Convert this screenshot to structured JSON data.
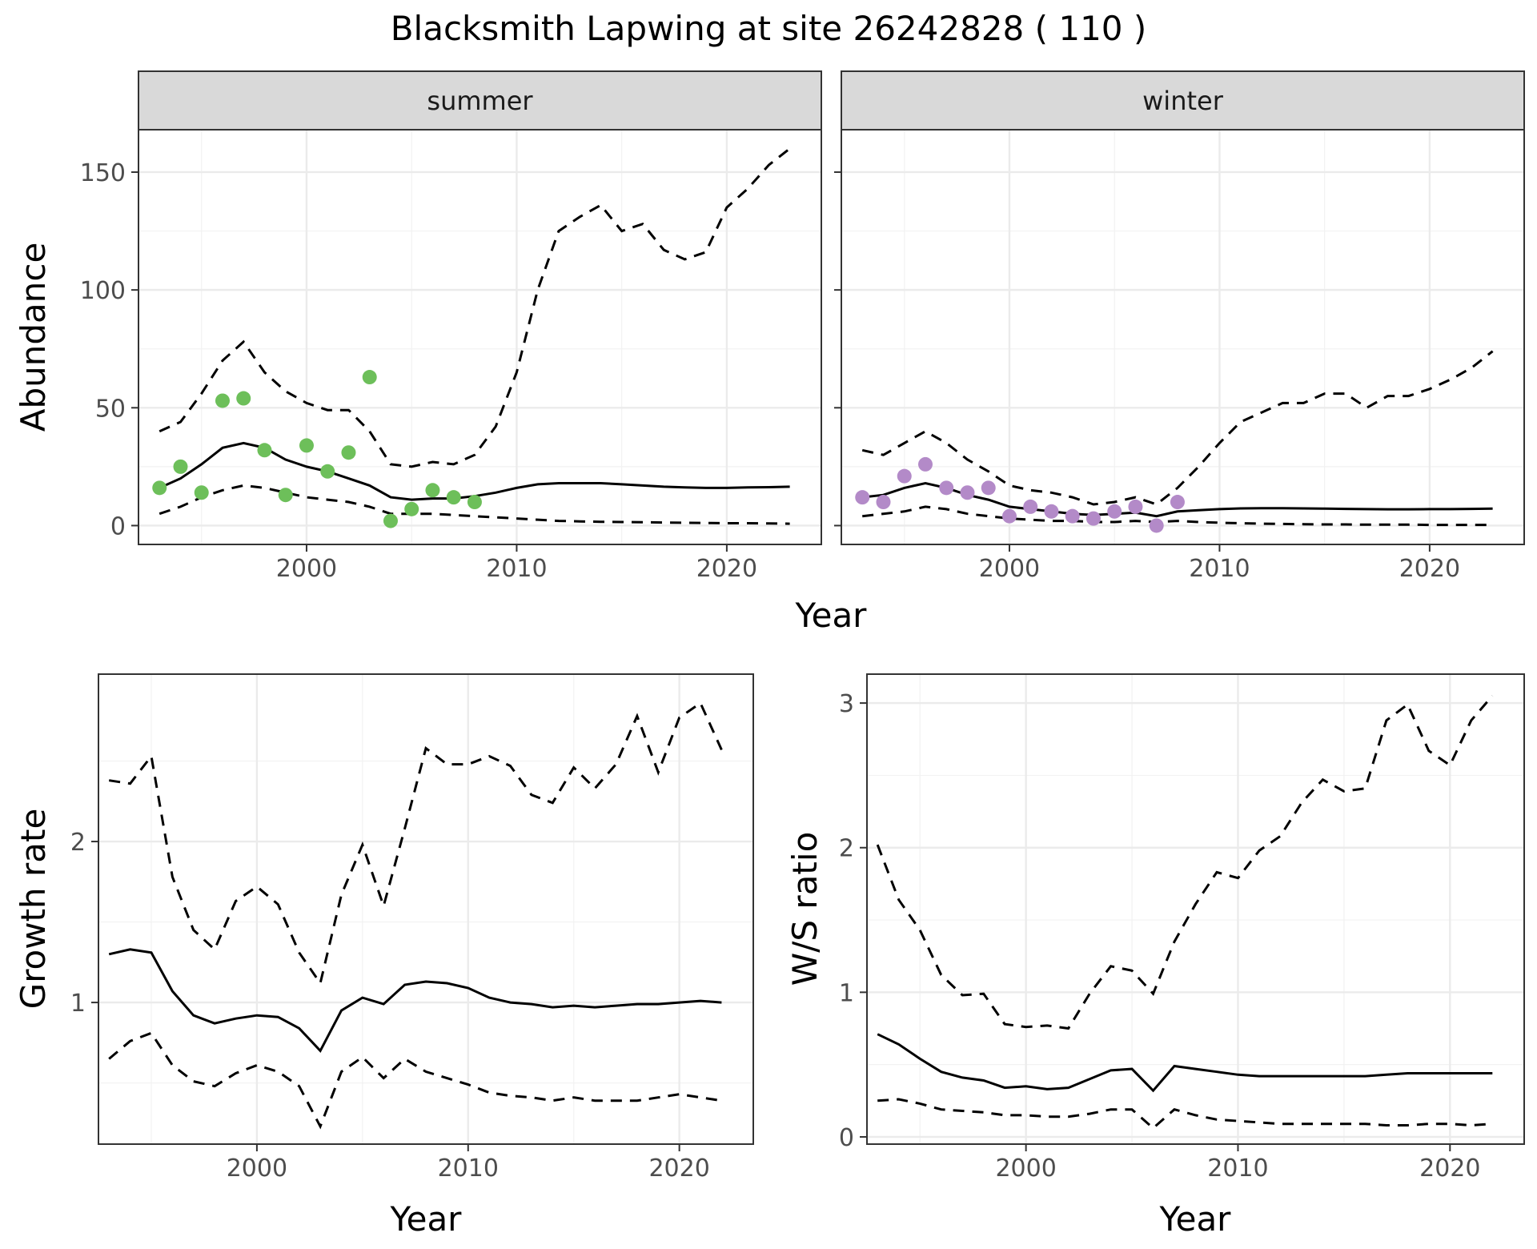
{
  "title": "Blacksmith Lapwing at site 26242828 ( 110 )",
  "colors": {
    "summer_points": "#6dbf5a",
    "winter_points": "#b38ac8",
    "lines": "#000000"
  },
  "axes": {
    "abundance_ylabel": "Abundance",
    "growth_ylabel": "Growth rate",
    "ratio_ylabel": "W/S ratio",
    "xlabel": "Year"
  },
  "chart_data": [
    {
      "type": "line",
      "panel": "summer",
      "xlabel": "Year",
      "ylabel": "Abundance",
      "xlim": [
        1992,
        2024.5
      ],
      "ylim": [
        -8,
        168
      ],
      "x_ticks": [
        2000,
        2010,
        2020
      ],
      "y_ticks": [
        0,
        50,
        100,
        150
      ],
      "grid": true,
      "points": {
        "x": [
          1993,
          1994,
          1995,
          1996,
          1997,
          1998,
          1999,
          2000,
          2001,
          2002,
          2003,
          2004,
          2005,
          2006,
          2007,
          2008
        ],
        "y": [
          16,
          25,
          14,
          53,
          54,
          32,
          13,
          34,
          23,
          31,
          63,
          2,
          7,
          15,
          12,
          10
        ]
      },
      "series": [
        {
          "role": "estimate",
          "x": [
            1993,
            1994,
            1995,
            1996,
            1997,
            1998,
            1999,
            2000,
            2001,
            2002,
            2003,
            2004,
            2005,
            2006,
            2007,
            2008,
            2009,
            2010,
            2011,
            2012,
            2013,
            2014,
            2015,
            2016,
            2017,
            2018,
            2019,
            2020,
            2021,
            2022,
            2023
          ],
          "y": [
            16,
            20,
            26,
            33,
            35,
            33,
            28,
            25,
            23,
            20,
            17,
            12,
            11,
            11.5,
            11.5,
            12.5,
            14,
            16,
            17.5,
            18,
            18,
            18,
            17.5,
            17,
            16.5,
            16.2,
            16,
            16,
            16.2,
            16.3,
            16.5
          ]
        },
        {
          "role": "upper_ci",
          "x": [
            1993,
            1994,
            1995,
            1996,
            1997,
            1998,
            1999,
            2000,
            2001,
            2002,
            2003,
            2004,
            2005,
            2006,
            2007,
            2008,
            2009,
            2010,
            2011,
            2012,
            2013,
            2014,
            2015,
            2016,
            2017,
            2018,
            2019,
            2020,
            2021,
            2022,
            2023
          ],
          "y": [
            40,
            44,
            56,
            70,
            78,
            65,
            57,
            52,
            49,
            49,
            40,
            26,
            25,
            27,
            26,
            30,
            42,
            65,
            100,
            125,
            131,
            136,
            125,
            128,
            117,
            113,
            116,
            135,
            143,
            153,
            160
          ]
        },
        {
          "role": "lower_ci",
          "x": [
            1993,
            1994,
            1995,
            1996,
            1997,
            1998,
            1999,
            2000,
            2001,
            2002,
            2003,
            2004,
            2005,
            2006,
            2007,
            2008,
            2009,
            2010,
            2011,
            2012,
            2013,
            2014,
            2015,
            2016,
            2017,
            2018,
            2019,
            2020,
            2021,
            2022,
            2023
          ],
          "y": [
            5,
            8,
            12,
            15,
            17,
            16,
            14,
            12,
            11,
            10,
            8,
            5,
            5,
            5,
            4.5,
            4,
            3.5,
            3,
            2.5,
            2,
            1.8,
            1.6,
            1.5,
            1.4,
            1.3,
            1.2,
            1.1,
            1,
            1,
            0.9,
            0.8
          ]
        }
      ]
    },
    {
      "type": "line",
      "panel": "winter",
      "xlabel": "Year",
      "ylabel": "Abundance",
      "xlim": [
        1992,
        2024.5
      ],
      "ylim": [
        -8,
        168
      ],
      "x_ticks": [
        2000,
        2010,
        2020
      ],
      "y_ticks": [
        0,
        50,
        100,
        150
      ],
      "grid": true,
      "points": {
        "x": [
          1993,
          1994,
          1995,
          1996,
          1997,
          1998,
          1999,
          2000,
          2001,
          2002,
          2003,
          2004,
          2005,
          2006,
          2007,
          2008
        ],
        "y": [
          12,
          10,
          21,
          26,
          16,
          14,
          16,
          4,
          8,
          6,
          4,
          3,
          6,
          8,
          0,
          10
        ]
      },
      "series": [
        {
          "role": "estimate",
          "x": [
            1993,
            1994,
            1995,
            1996,
            1997,
            1998,
            1999,
            2000,
            2001,
            2002,
            2003,
            2004,
            2005,
            2006,
            2007,
            2008,
            2009,
            2010,
            2011,
            2012,
            2013,
            2014,
            2015,
            2016,
            2017,
            2018,
            2019,
            2020,
            2021,
            2022,
            2023
          ],
          "y": [
            12,
            13,
            16,
            18,
            16,
            13,
            11,
            8,
            7,
            6,
            5,
            4.5,
            5,
            5.5,
            4,
            6,
            6.5,
            7,
            7.3,
            7.4,
            7.4,
            7.3,
            7.2,
            7.1,
            7.0,
            6.9,
            6.9,
            7.0,
            7.0,
            7.1,
            7.2
          ]
        },
        {
          "role": "upper_ci",
          "x": [
            1993,
            1994,
            1995,
            1996,
            1997,
            1998,
            1999,
            2000,
            2001,
            2002,
            2003,
            2004,
            2005,
            2006,
            2007,
            2008,
            2009,
            2010,
            2011,
            2012,
            2013,
            2014,
            2015,
            2016,
            2017,
            2018,
            2019,
            2020,
            2021,
            2022,
            2023
          ],
          "y": [
            32,
            30,
            35,
            40,
            35,
            28,
            23,
            17,
            15,
            14,
            12,
            9,
            10,
            12,
            9,
            16,
            25,
            35,
            44,
            48,
            52,
            52,
            56,
            56,
            50,
            55,
            55,
            58,
            62,
            67,
            74
          ]
        },
        {
          "role": "lower_ci",
          "x": [
            1993,
            1994,
            1995,
            1996,
            1997,
            1998,
            1999,
            2000,
            2001,
            2002,
            2003,
            2004,
            2005,
            2006,
            2007,
            2008,
            2009,
            2010,
            2011,
            2012,
            2013,
            2014,
            2015,
            2016,
            2017,
            2018,
            2019,
            2020,
            2021,
            2022,
            2023
          ],
          "y": [
            4,
            5,
            6,
            8,
            7,
            5,
            4,
            3,
            2.5,
            2,
            2,
            1.5,
            1.5,
            2,
            1.5,
            2,
            1.5,
            1.2,
            1,
            0.8,
            0.7,
            0.6,
            0.5,
            0.5,
            0.4,
            0.4,
            0.4,
            0.3,
            0.3,
            0.3,
            0.3
          ]
        }
      ]
    },
    {
      "type": "line",
      "panel": "growth",
      "xlabel": "Year",
      "ylabel": "Growth rate",
      "xlim": [
        1992.5,
        2023.5
      ],
      "ylim": [
        0.12,
        3.04
      ],
      "x_ticks": [
        2000,
        2010,
        2020
      ],
      "y_ticks": [
        1,
        2
      ],
      "grid": true,
      "series": [
        {
          "role": "estimate",
          "x": [
            1993,
            1994,
            1995,
            1996,
            1997,
            1998,
            1999,
            2000,
            2001,
            2002,
            2003,
            2004,
            2005,
            2006,
            2007,
            2008,
            2009,
            2010,
            2011,
            2012,
            2013,
            2014,
            2015,
            2016,
            2017,
            2018,
            2019,
            2020,
            2021,
            2022
          ],
          "y": [
            1.3,
            1.33,
            1.31,
            1.07,
            0.92,
            0.87,
            0.9,
            0.92,
            0.91,
            0.84,
            0.7,
            0.95,
            1.03,
            0.99,
            1.11,
            1.13,
            1.12,
            1.09,
            1.03,
            1.0,
            0.99,
            0.97,
            0.98,
            0.97,
            0.98,
            0.99,
            0.99,
            1.0,
            1.01,
            1.0
          ]
        },
        {
          "role": "upper_ci",
          "x": [
            1993,
            1994,
            1995,
            1996,
            1997,
            1998,
            1999,
            2000,
            2001,
            2002,
            2003,
            2004,
            2005,
            2006,
            2007,
            2008,
            2009,
            2010,
            2011,
            2012,
            2013,
            2014,
            2015,
            2016,
            2017,
            2018,
            2019,
            2020,
            2021,
            2022
          ],
          "y": [
            2.38,
            2.36,
            2.53,
            1.78,
            1.45,
            1.33,
            1.63,
            1.72,
            1.61,
            1.31,
            1.12,
            1.67,
            1.98,
            1.6,
            2.08,
            2.58,
            2.48,
            2.48,
            2.53,
            2.47,
            2.29,
            2.24,
            2.46,
            2.33,
            2.48,
            2.78,
            2.43,
            2.77,
            2.86,
            2.57
          ]
        },
        {
          "role": "lower_ci",
          "x": [
            1993,
            1994,
            1995,
            1996,
            1997,
            1998,
            1999,
            2000,
            2001,
            2002,
            2003,
            2004,
            2005,
            2006,
            2007,
            2008,
            2009,
            2010,
            2011,
            2012,
            2013,
            2014,
            2015,
            2016,
            2017,
            2018,
            2019,
            2020,
            2021,
            2022
          ],
          "y": [
            0.65,
            0.76,
            0.81,
            0.61,
            0.51,
            0.48,
            0.56,
            0.61,
            0.57,
            0.48,
            0.23,
            0.57,
            0.66,
            0.53,
            0.65,
            0.57,
            0.53,
            0.49,
            0.44,
            0.42,
            0.41,
            0.39,
            0.41,
            0.39,
            0.39,
            0.39,
            0.41,
            0.43,
            0.41,
            0.39
          ]
        }
      ]
    },
    {
      "type": "line",
      "panel": "ratio",
      "xlabel": "Year",
      "ylabel": "W/S ratio",
      "xlim": [
        1992.5,
        2023.5
      ],
      "ylim": [
        -0.05,
        3.2
      ],
      "x_ticks": [
        2000,
        2010,
        2020
      ],
      "y_ticks": [
        0,
        1,
        2,
        3
      ],
      "grid": true,
      "series": [
        {
          "role": "estimate",
          "x": [
            1993,
            1994,
            1995,
            1996,
            1997,
            1998,
            1999,
            2000,
            2001,
            2002,
            2003,
            2004,
            2005,
            2006,
            2007,
            2008,
            2009,
            2010,
            2011,
            2012,
            2013,
            2014,
            2015,
            2016,
            2017,
            2018,
            2019,
            2020,
            2021,
            2022
          ],
          "y": [
            0.71,
            0.64,
            0.54,
            0.45,
            0.41,
            0.39,
            0.34,
            0.35,
            0.33,
            0.34,
            0.4,
            0.46,
            0.47,
            0.32,
            0.49,
            0.47,
            0.45,
            0.43,
            0.42,
            0.42,
            0.42,
            0.42,
            0.42,
            0.42,
            0.43,
            0.44,
            0.44,
            0.44,
            0.44,
            0.44
          ]
        },
        {
          "role": "upper_ci",
          "x": [
            1993,
            1994,
            1995,
            1996,
            1997,
            1998,
            1999,
            2000,
            2001,
            2002,
            2003,
            2004,
            2005,
            2006,
            2007,
            2008,
            2009,
            2010,
            2011,
            2012,
            2013,
            2014,
            2015,
            2016,
            2017,
            2018,
            2019,
            2020,
            2021,
            2022
          ],
          "y": [
            2.02,
            1.64,
            1.43,
            1.12,
            0.98,
            0.99,
            0.78,
            0.76,
            0.77,
            0.75,
            0.99,
            1.18,
            1.15,
            0.99,
            1.35,
            1.61,
            1.83,
            1.79,
            1.98,
            2.08,
            2.31,
            2.47,
            2.39,
            2.41,
            2.88,
            2.99,
            2.67,
            2.57,
            2.88,
            3.05
          ]
        },
        {
          "role": "lower_ci",
          "x": [
            1993,
            1994,
            1995,
            1996,
            1997,
            1998,
            1999,
            2000,
            2001,
            2002,
            2003,
            2004,
            2005,
            2006,
            2007,
            2008,
            2009,
            2010,
            2011,
            2012,
            2013,
            2014,
            2015,
            2016,
            2017,
            2018,
            2019,
            2020,
            2021,
            2022
          ],
          "y": [
            0.25,
            0.26,
            0.23,
            0.19,
            0.18,
            0.17,
            0.15,
            0.15,
            0.14,
            0.14,
            0.16,
            0.19,
            0.19,
            0.06,
            0.19,
            0.15,
            0.12,
            0.11,
            0.1,
            0.09,
            0.09,
            0.09,
            0.09,
            0.09,
            0.08,
            0.08,
            0.09,
            0.09,
            0.08,
            0.09
          ]
        }
      ]
    }
  ],
  "strips": {
    "summer": "summer",
    "winter": "winter"
  }
}
